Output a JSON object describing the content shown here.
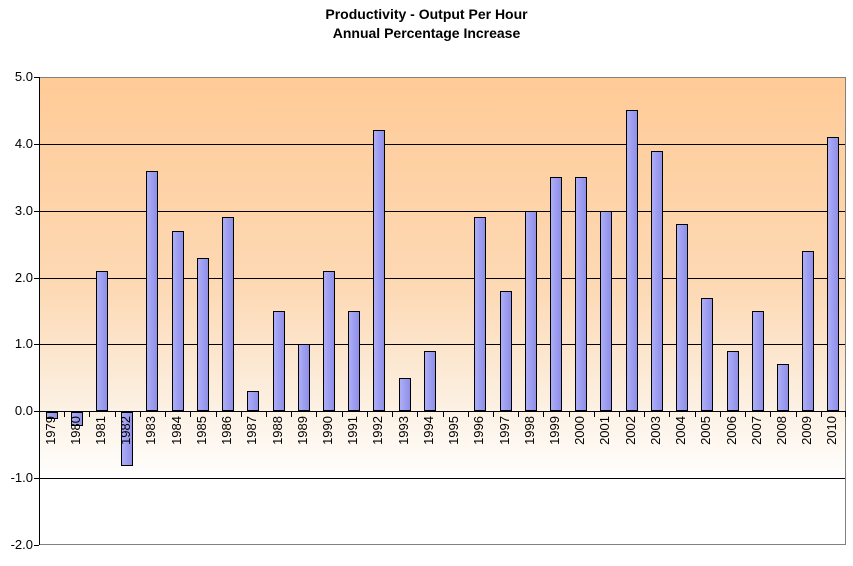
{
  "title": {
    "line1": "Productivity - Output Per Hour",
    "line2": "Annual Percentage Increase"
  },
  "chart_data": {
    "type": "bar",
    "title": "Productivity - Output Per Hour",
    "subtitle": "Annual Percentage Increase",
    "xlabel": "",
    "ylabel": "",
    "categories": [
      "1979",
      "1980",
      "1981",
      "1982",
      "1983",
      "1984",
      "1985",
      "1986",
      "1987",
      "1988",
      "1989",
      "1990",
      "1991",
      "1992",
      "1993",
      "1994",
      "1995",
      "1996",
      "1997",
      "1998",
      "1999",
      "2000",
      "2001",
      "2002",
      "2003",
      "2004",
      "2005",
      "2006",
      "2007",
      "2008",
      "2009",
      "2010"
    ],
    "values": [
      -0.1,
      -0.2,
      2.1,
      -0.8,
      3.6,
      2.7,
      2.3,
      2.9,
      0.3,
      1.5,
      1.0,
      2.1,
      1.5,
      4.2,
      0.5,
      0.9,
      0.0,
      2.9,
      1.8,
      3.0,
      3.5,
      3.5,
      3.0,
      4.5,
      3.9,
      2.8,
      1.7,
      0.9,
      1.5,
      0.7,
      2.4,
      4.1
    ],
    "ylim": [
      -2.0,
      5.0
    ],
    "ytick_interval": 1.0,
    "ytick_labels": [
      "5.0",
      "4.0",
      "3.0",
      "2.0",
      "1.0",
      "0.0",
      "-1.0",
      "-2.0"
    ],
    "grid": true,
    "legend": false,
    "x_labels_rotated_90": true
  },
  "colors": {
    "bar_fill": "#9c9cf0",
    "bar_border": "#000000",
    "plot_bg_top": "#ffcb97",
    "plot_bg_bottom": "#ffffff",
    "gridline": "#000000",
    "plot_border": "#808080",
    "text": "#000000"
  }
}
